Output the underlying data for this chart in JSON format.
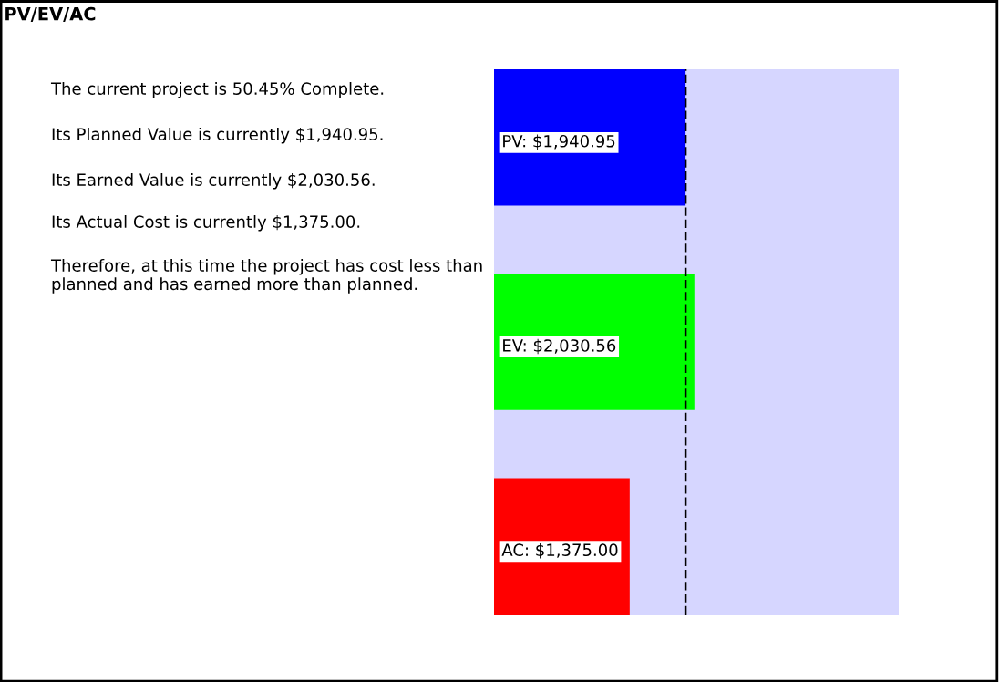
{
  "chart_data": {
    "type": "bar",
    "orientation": "horizontal",
    "title": "PV/EV/AC",
    "categories": [
      null,
      null,
      null
    ],
    "values": [
      1940.95,
      2030.56,
      1375.0
    ],
    "colors": [
      "#0000ff",
      "#00ff00",
      "#ff0000"
    ],
    "value_labels": [
      "PV: $1,940.95",
      "EV: $2,030.56",
      "AC: $1,375.00"
    ],
    "ref_lines": [
      {
        "axis": "x",
        "value": 1940.95,
        "line_style": "dashed",
        "color": "#000000"
      }
    ],
    "annotations": [
      "The current project is 50.45% Complete.",
      "Its Planned Value is currently $1,940.95.",
      "Its Earned Value is currently $2,030.56.",
      "Its Actual Cost is currently $1,375.00.",
      "Therefore, at this time the project has cost less than planned and has earned more than planned."
    ],
    "grid": false,
    "legend": false
  }
}
